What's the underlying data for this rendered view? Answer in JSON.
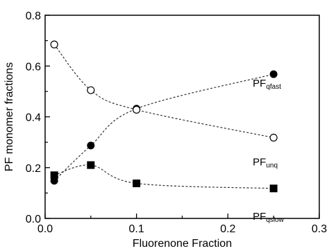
{
  "chart_data": {
    "type": "scatter",
    "xlabel": "Fluorenone Fraction",
    "ylabel": "PF monomer fractions",
    "xlim": [
      0.0,
      0.3
    ],
    "ylim": [
      0.0,
      0.8
    ],
    "xticks": [
      "0.0",
      "0.1",
      "0.2",
      "0.3"
    ],
    "yticks": [
      "0.0",
      "0.2",
      "0.4",
      "0.6",
      "0.8"
    ],
    "grid": false,
    "curve_style": "dashed fit line through points",
    "series": [
      {
        "name": "PFqfast",
        "label_main": "PF",
        "label_sub": "qfast",
        "marker": "filled-circle",
        "x": [
          0.01,
          0.05,
          0.1,
          0.25
        ],
        "y": [
          0.148,
          0.287,
          0.432,
          0.568
        ],
        "label_at": [
          0.25,
          0.56
        ]
      },
      {
        "name": "PFunq",
        "label_main": "PF",
        "label_sub": "unq",
        "marker": "open-circle",
        "x": [
          0.01,
          0.05,
          0.1,
          0.25
        ],
        "y": [
          0.685,
          0.505,
          0.428,
          0.318
        ],
        "label_at": [
          0.25,
          0.25
        ]
      },
      {
        "name": "PFqslow",
        "label_main": "PF",
        "label_sub": "qslow",
        "marker": "filled-square",
        "x": [
          0.01,
          0.05,
          0.1,
          0.25
        ],
        "y": [
          0.17,
          0.21,
          0.138,
          0.118
        ],
        "label_at": [
          0.25,
          0.035
        ]
      }
    ]
  }
}
